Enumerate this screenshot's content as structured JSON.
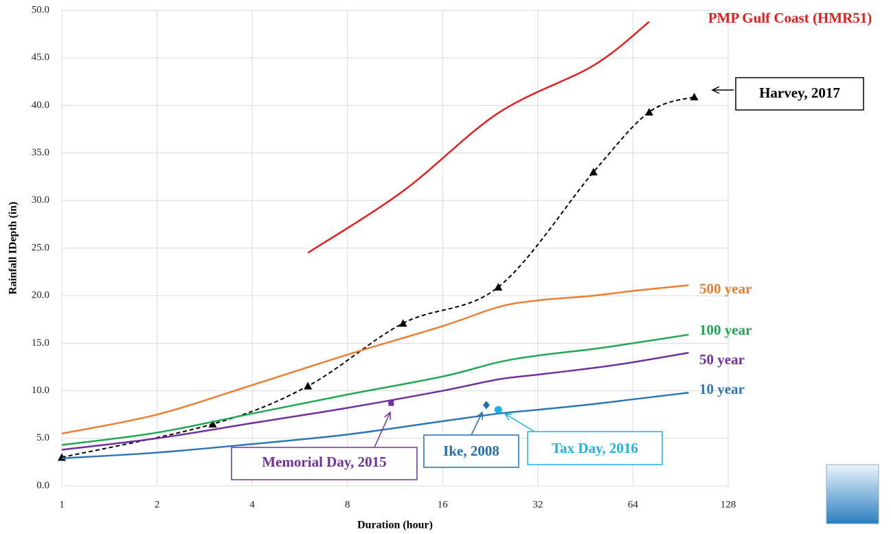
{
  "chart_data": {
    "type": "line",
    "xlabel": "Duration (hour)",
    "ylabel": "Rainfall IDepth (in)",
    "xscale": "log",
    "xbase": 2,
    "xlim": [
      1,
      128
    ],
    "xticks": [
      1,
      2,
      4,
      8,
      16,
      32,
      64,
      128
    ],
    "ylim": [
      0,
      50
    ],
    "yticks": [
      {
        "value": 0,
        "label": "0.0"
      },
      {
        "value": 5,
        "label": "5.0"
      },
      {
        "value": 10,
        "label": "10.0"
      },
      {
        "value": 15,
        "label": "15.0"
      },
      {
        "value": 20,
        "label": "20.0"
      },
      {
        "value": 25,
        "label": "25.0"
      },
      {
        "value": 30,
        "label": "30.0"
      },
      {
        "value": 35,
        "label": "35.0"
      },
      {
        "value": 40,
        "label": "40.0"
      },
      {
        "value": 45,
        "label": "45.0"
      },
      {
        "value": 50,
        "label": "50.0"
      }
    ],
    "grid": true,
    "series": [
      {
        "name": "PMP Gulf Coast (HMR51)",
        "color": "#e81c1c",
        "x": [
          6,
          12,
          24,
          48,
          72
        ],
        "values": [
          24.5,
          31,
          39.2,
          44.2,
          48.8
        ]
      },
      {
        "name": "Harvey, 2017",
        "color": "#000000",
        "dash": true,
        "marker": "triangle",
        "x": [
          1,
          3,
          6,
          12,
          24,
          48,
          72,
          100
        ],
        "values": [
          3.0,
          6.5,
          10.5,
          17.1,
          20.9,
          33.0,
          39.3,
          40.9
        ]
      },
      {
        "name": "500 year",
        "color": "#ed7d31",
        "x": [
          1,
          2,
          4,
          8,
          16,
          24,
          32,
          48,
          64,
          96
        ],
        "values": [
          5.5,
          7.5,
          10.6,
          13.8,
          16.8,
          18.8,
          19.5,
          20.0,
          20.5,
          21.1
        ]
      },
      {
        "name": "100 year",
        "color": "#21a852",
        "x": [
          1,
          2,
          4,
          8,
          16,
          24,
          32,
          48,
          64,
          96
        ],
        "values": [
          4.3,
          5.6,
          7.6,
          9.6,
          11.5,
          13.0,
          13.7,
          14.4,
          15.0,
          15.9
        ]
      },
      {
        "name": "50 year",
        "color": "#7030a0",
        "x": [
          1,
          2,
          4,
          8,
          16,
          24,
          32,
          48,
          64,
          96
        ],
        "values": [
          3.8,
          5.0,
          6.6,
          8.2,
          10.0,
          11.2,
          11.7,
          12.4,
          13.0,
          14.0
        ]
      },
      {
        "name": "10 year",
        "color": "#2e75b6",
        "x": [
          1,
          2,
          4,
          8,
          16,
          24,
          32,
          48,
          64,
          96
        ],
        "values": [
          2.9,
          3.5,
          4.4,
          5.4,
          6.8,
          7.6,
          8.0,
          8.6,
          9.1,
          9.8
        ]
      },
      {
        "name": "Memorial Day, 2015",
        "color": "#7030a0",
        "marker": "square",
        "x": [
          11
        ],
        "values": [
          8.7
        ]
      },
      {
        "name": "Ike, 2008",
        "color": "#1f6db3",
        "marker": "diamond",
        "x": [
          22
        ],
        "values": [
          8.5
        ]
      },
      {
        "name": "Tax Day, 2016",
        "color": "#1fb0e8",
        "marker": "circle",
        "x": [
          24
        ],
        "values": [
          8.0
        ]
      }
    ]
  }
}
